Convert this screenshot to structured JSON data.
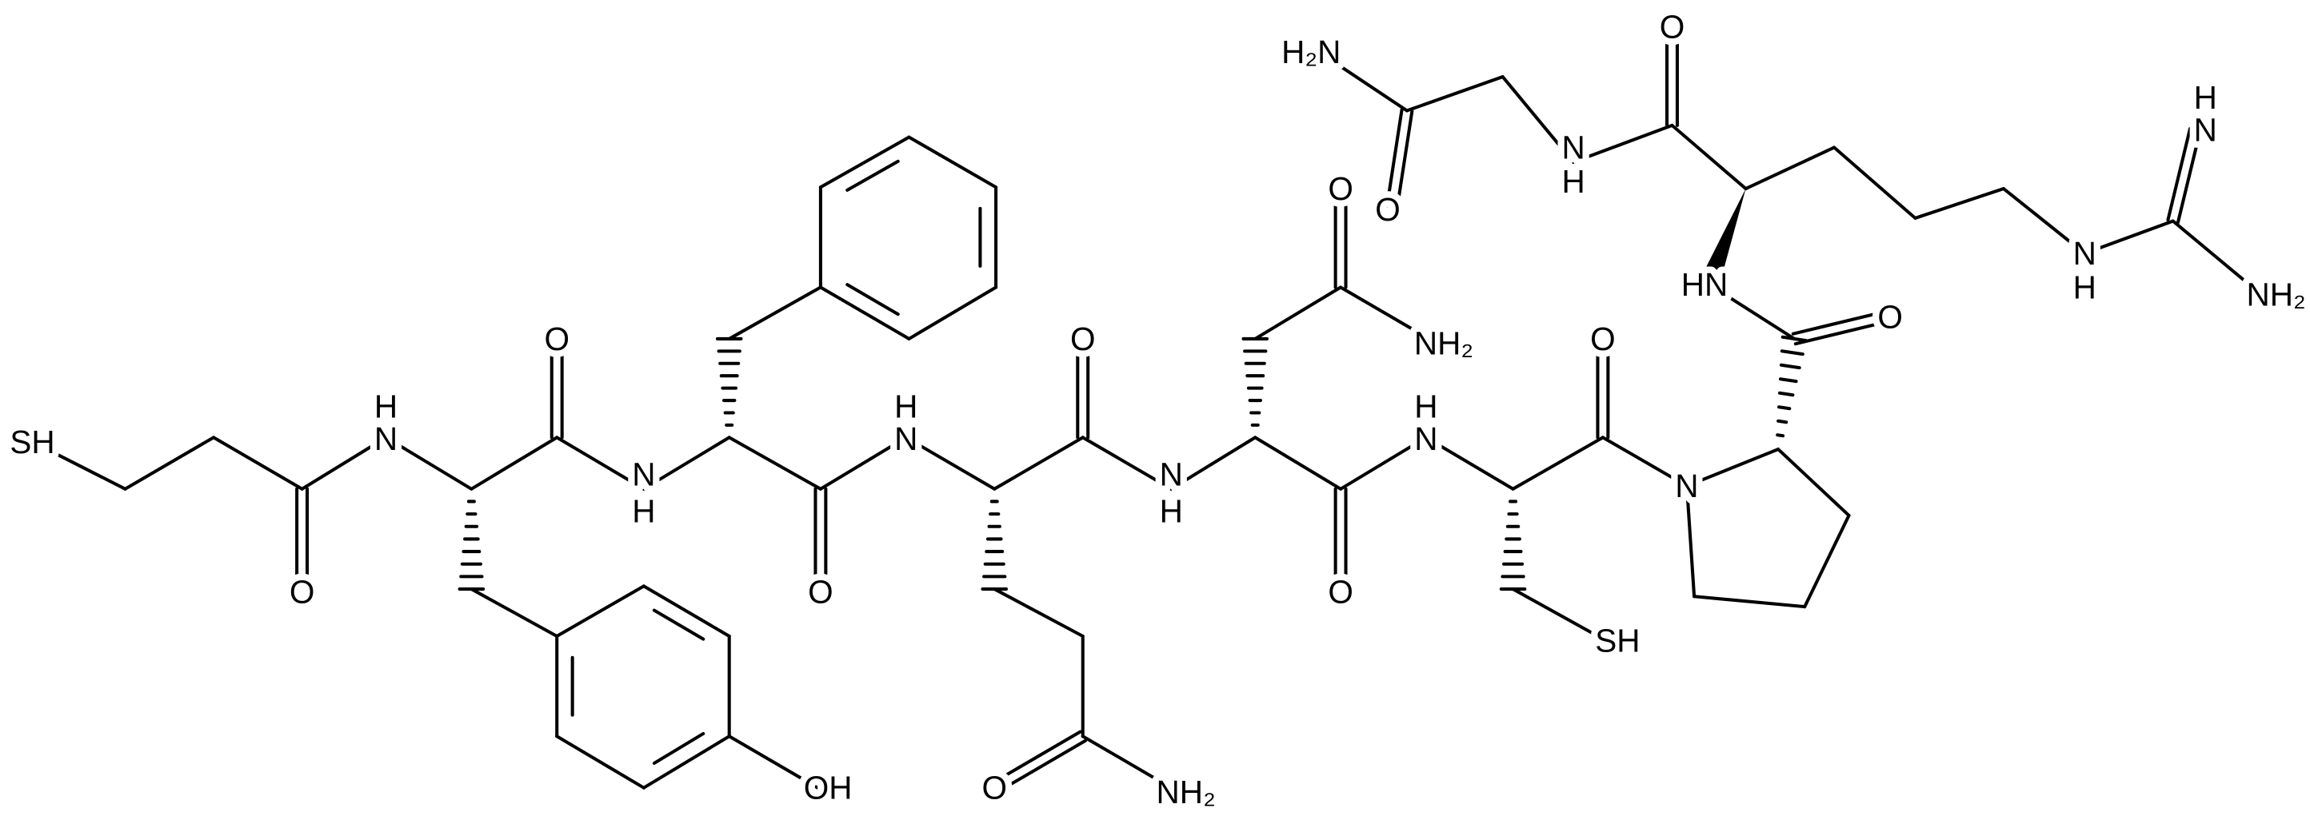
{
  "atom_labels": [
    "SH",
    "H",
    "N",
    "O",
    "O",
    "OH",
    "N",
    "H",
    "O",
    "H",
    "N",
    "O",
    "O",
    "NH₂",
    "N",
    "H",
    "O",
    "NH₂",
    "O",
    "H",
    "N",
    "O",
    "SH",
    "N",
    "O",
    "HN",
    "O",
    "N",
    "H",
    "O",
    "H₂N",
    "N",
    "H",
    "N",
    "H",
    "NH₂"
  ]
}
